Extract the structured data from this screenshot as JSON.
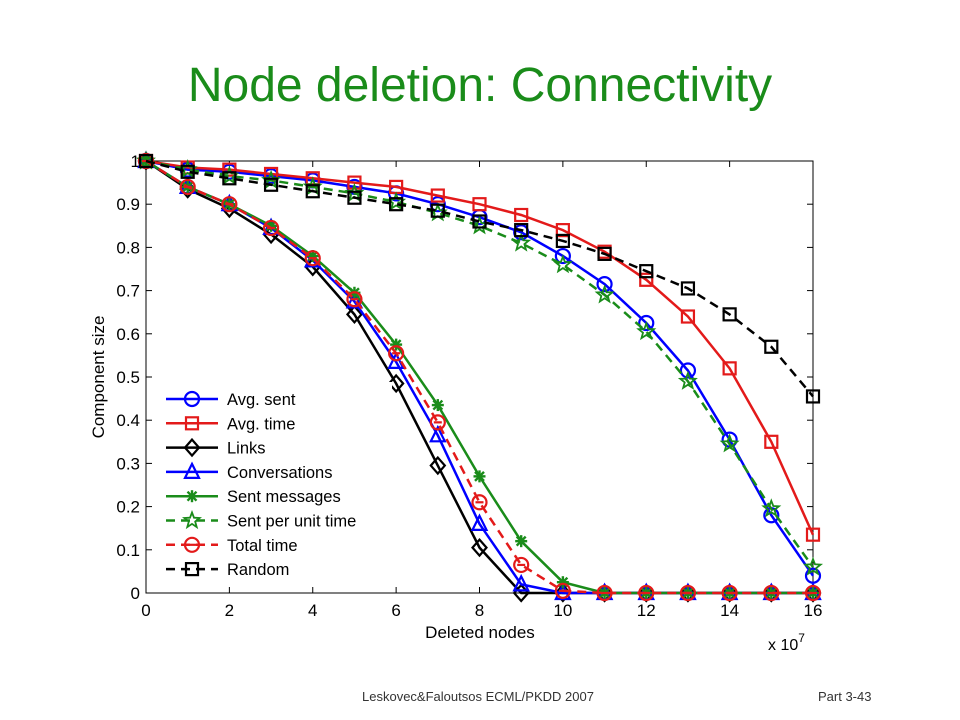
{
  "slide": {
    "title": "Node deletion: Connectivity",
    "footer_left": "Leskovec&Faloutsos ECML/PKDD 2007",
    "footer_right": "Part 3-43"
  },
  "chart_data": {
    "type": "line",
    "xlabel": "Deleted nodes",
    "ylabel": "Component size",
    "x_multiplier": "x 10",
    "x_multiplier_exp": "7",
    "xlim": [
      0,
      16
    ],
    "ylim": [
      0,
      1
    ],
    "xticks": [
      "0",
      "2",
      "4",
      "6",
      "8",
      "10",
      "12",
      "14",
      "16"
    ],
    "yticks": [
      "0",
      "0.1",
      "0.2",
      "0.3",
      "0.4",
      "0.5",
      "0.6",
      "0.7",
      "0.8",
      "0.9",
      "1"
    ],
    "grid": false,
    "legend_position": "bottom-left",
    "x": [
      0,
      1,
      2,
      3,
      4,
      5,
      6,
      7,
      8,
      9,
      10,
      11,
      12,
      13,
      14,
      15,
      16
    ],
    "series": [
      {
        "name": "Avg. sent",
        "color": "#0000ff",
        "dash": false,
        "marker": "circle",
        "values": [
          1.0,
          0.98,
          0.975,
          0.965,
          0.955,
          0.94,
          0.925,
          0.9,
          0.87,
          0.835,
          0.78,
          0.715,
          0.625,
          0.515,
          0.355,
          0.18,
          0.04
        ]
      },
      {
        "name": "Avg. time",
        "color": "#e31a1a",
        "dash": false,
        "marker": "square",
        "values": [
          1.0,
          0.985,
          0.98,
          0.97,
          0.96,
          0.95,
          0.94,
          0.92,
          0.9,
          0.875,
          0.84,
          0.79,
          0.725,
          0.64,
          0.52,
          0.35,
          0.135
        ]
      },
      {
        "name": "Links",
        "color": "#000000",
        "dash": false,
        "marker": "diamond",
        "values": [
          1.0,
          0.935,
          0.89,
          0.83,
          0.755,
          0.645,
          0.485,
          0.295,
          0.105,
          0.0,
          0.0,
          0.0,
          0.0,
          0.0,
          0.0,
          0.0,
          0.0
        ]
      },
      {
        "name": "Conversations",
        "color": "#0000ff",
        "dash": false,
        "marker": "triangle",
        "values": [
          1.0,
          0.94,
          0.9,
          0.845,
          0.77,
          0.675,
          0.535,
          0.365,
          0.16,
          0.02,
          0.0,
          0.0,
          0.0,
          0.0,
          0.0,
          0.0,
          0.0
        ]
      },
      {
        "name": "Sent messages",
        "color": "#1a8c1a",
        "dash": false,
        "marker": "asterisk",
        "values": [
          1.0,
          0.94,
          0.9,
          0.85,
          0.78,
          0.695,
          0.575,
          0.435,
          0.27,
          0.12,
          0.025,
          0.0,
          0.0,
          0.0,
          0.0,
          0.0,
          0.0
        ]
      },
      {
        "name": "Sent per unit time",
        "color": "#1a8c1a",
        "dash": true,
        "marker": "star",
        "values": [
          1.0,
          0.98,
          0.965,
          0.955,
          0.94,
          0.925,
          0.905,
          0.88,
          0.85,
          0.81,
          0.76,
          0.69,
          0.605,
          0.49,
          0.345,
          0.195,
          0.06
        ]
      },
      {
        "name": "Total time",
        "color": "#e31a1a",
        "dash": true,
        "marker": "circle-minus",
        "values": [
          1.0,
          0.94,
          0.9,
          0.845,
          0.775,
          0.68,
          0.555,
          0.395,
          0.21,
          0.065,
          0.005,
          0.0,
          0.0,
          0.0,
          0.0,
          0.0,
          0.0
        ]
      },
      {
        "name": "Random",
        "color": "#000000",
        "dash": true,
        "marker": "square",
        "values": [
          1.0,
          0.975,
          0.96,
          0.945,
          0.93,
          0.915,
          0.9,
          0.885,
          0.86,
          0.84,
          0.815,
          0.785,
          0.745,
          0.705,
          0.645,
          0.57,
          0.455
        ]
      }
    ]
  }
}
